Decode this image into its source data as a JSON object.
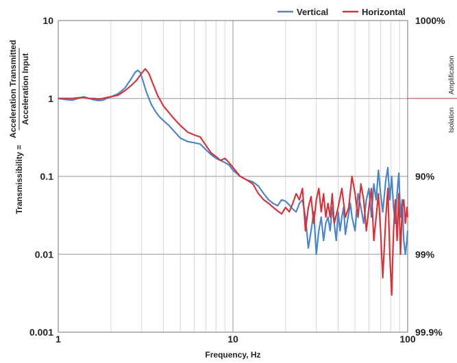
{
  "chart_data": {
    "type": "line",
    "xscale": "log",
    "yscale": "log",
    "xlim": [
      1,
      100
    ],
    "ylim": [
      0.001,
      10
    ],
    "xlabel": "Frequency, Hz",
    "ylabel_prefix": "Transmissibility =",
    "ylabel_numerator": "Acceleration Transmitted",
    "ylabel_denominator": "Acceleration Input",
    "x_ticks": [
      {
        "value": 1,
        "label": "1"
      },
      {
        "value": 10,
        "label": "10"
      },
      {
        "value": 100,
        "label": "100"
      }
    ],
    "y_ticks": [
      {
        "value": 10,
        "label": "10"
      },
      {
        "value": 1,
        "label": "1"
      },
      {
        "value": 0.1,
        "label": "0.1"
      },
      {
        "value": 0.01,
        "label": "0.01"
      },
      {
        "value": 0.001,
        "label": "0.001"
      }
    ],
    "right_axis_ticks": [
      {
        "value": 10,
        "label": "1000%"
      },
      {
        "value": 0.1,
        "label": "90%"
      },
      {
        "value": 0.01,
        "label": "99%"
      },
      {
        "value": 0.001,
        "label": "99.9%"
      }
    ],
    "right_axis_labels": {
      "upper": "Amplification",
      "lower": "Isolation",
      "divider_value": 1
    },
    "grid": true,
    "legend_position": "top-right",
    "series": [
      {
        "name": "Vertical",
        "color": "#4a86c5",
        "points": [
          [
            1.0,
            1.0
          ],
          [
            1.1,
            0.97
          ],
          [
            1.2,
            0.95
          ],
          [
            1.3,
            1.0
          ],
          [
            1.4,
            1.05
          ],
          [
            1.5,
            1.0
          ],
          [
            1.6,
            0.96
          ],
          [
            1.7,
            0.94
          ],
          [
            1.8,
            0.95
          ],
          [
            1.9,
            1.0
          ],
          [
            2.0,
            1.05
          ],
          [
            2.2,
            1.15
          ],
          [
            2.4,
            1.35
          ],
          [
            2.6,
            1.75
          ],
          [
            2.75,
            2.15
          ],
          [
            2.85,
            2.3
          ],
          [
            2.95,
            2.15
          ],
          [
            3.05,
            1.7
          ],
          [
            3.2,
            1.2
          ],
          [
            3.4,
            0.85
          ],
          [
            3.6,
            0.68
          ],
          [
            3.8,
            0.58
          ],
          [
            4.0,
            0.52
          ],
          [
            4.3,
            0.45
          ],
          [
            4.6,
            0.38
          ],
          [
            5.0,
            0.31
          ],
          [
            5.5,
            0.28
          ],
          [
            6.0,
            0.27
          ],
          [
            6.5,
            0.26
          ],
          [
            7.0,
            0.22
          ],
          [
            7.5,
            0.19
          ],
          [
            8.0,
            0.17
          ],
          [
            8.5,
            0.16
          ],
          [
            9.0,
            0.15
          ],
          [
            9.5,
            0.14
          ],
          [
            10.0,
            0.12
          ],
          [
            11.0,
            0.1
          ],
          [
            12.0,
            0.09
          ],
          [
            13.0,
            0.085
          ],
          [
            14.0,
            0.075
          ],
          [
            15.0,
            0.06
          ],
          [
            16.0,
            0.05
          ],
          [
            17.0,
            0.045
          ],
          [
            18.0,
            0.042
          ],
          [
            19.0,
            0.05
          ],
          [
            20.0,
            0.048
          ],
          [
            21.0,
            0.043
          ],
          [
            22.0,
            0.038
          ],
          [
            23.0,
            0.035
          ],
          [
            24.0,
            0.045
          ],
          [
            25.0,
            0.05
          ],
          [
            26.0,
            0.03
          ],
          [
            27.0,
            0.012
          ],
          [
            28.0,
            0.02
          ],
          [
            29.0,
            0.035
          ],
          [
            30.0,
            0.01
          ],
          [
            31.0,
            0.02
          ],
          [
            32.0,
            0.03
          ],
          [
            33.0,
            0.015
          ],
          [
            34.0,
            0.025
          ],
          [
            35.0,
            0.03
          ],
          [
            36.0,
            0.02
          ],
          [
            37.0,
            0.04
          ],
          [
            38.0,
            0.025
          ],
          [
            39.0,
            0.015
          ],
          [
            40.0,
            0.035
          ],
          [
            41.0,
            0.02
          ],
          [
            42.0,
            0.03
          ],
          [
            43.0,
            0.04
          ],
          [
            44.0,
            0.018
          ],
          [
            45.0,
            0.025
          ],
          [
            47.0,
            0.045
          ],
          [
            48.0,
            0.03
          ],
          [
            50.0,
            0.02
          ],
          [
            52.0,
            0.06
          ],
          [
            54.0,
            0.04
          ],
          [
            56.0,
            0.025
          ],
          [
            58.0,
            0.05
          ],
          [
            60.0,
            0.07
          ],
          [
            62.0,
            0.03
          ],
          [
            64.0,
            0.08
          ],
          [
            66.0,
            0.05
          ],
          [
            68.0,
            0.12
          ],
          [
            70.0,
            0.06
          ],
          [
            72.0,
            0.035
          ],
          [
            75.0,
            0.09
          ],
          [
            77.0,
            0.13
          ],
          [
            79.0,
            0.05
          ],
          [
            81.0,
            0.1
          ],
          [
            83.0,
            0.04
          ],
          [
            85.0,
            0.025
          ],
          [
            87.0,
            0.06
          ],
          [
            89.0,
            0.11
          ],
          [
            91.0,
            0.03
          ],
          [
            93.0,
            0.05
          ],
          [
            95.0,
            0.015
          ],
          [
            97.0,
            0.01
          ],
          [
            99.0,
            0.015
          ],
          [
            100.0,
            0.02
          ]
        ]
      },
      {
        "name": "Horizontal",
        "color": "#d2343c",
        "points": [
          [
            1.0,
            1.0
          ],
          [
            1.1,
            1.0
          ],
          [
            1.2,
            1.0
          ],
          [
            1.3,
            1.02
          ],
          [
            1.4,
            1.03
          ],
          [
            1.5,
            1.0
          ],
          [
            1.6,
            1.0
          ],
          [
            1.7,
            0.98
          ],
          [
            1.8,
            1.0
          ],
          [
            1.9,
            1.03
          ],
          [
            2.0,
            1.05
          ],
          [
            2.2,
            1.1
          ],
          [
            2.4,
            1.25
          ],
          [
            2.6,
            1.45
          ],
          [
            2.8,
            1.7
          ],
          [
            3.0,
            2.1
          ],
          [
            3.15,
            2.4
          ],
          [
            3.3,
            2.1
          ],
          [
            3.5,
            1.5
          ],
          [
            3.7,
            1.1
          ],
          [
            4.0,
            0.8
          ],
          [
            4.3,
            0.66
          ],
          [
            4.6,
            0.55
          ],
          [
            5.0,
            0.45
          ],
          [
            5.5,
            0.37
          ],
          [
            6.0,
            0.34
          ],
          [
            6.5,
            0.32
          ],
          [
            7.0,
            0.25
          ],
          [
            7.5,
            0.2
          ],
          [
            8.0,
            0.18
          ],
          [
            8.5,
            0.16
          ],
          [
            9.0,
            0.17
          ],
          [
            9.5,
            0.15
          ],
          [
            10.0,
            0.13
          ],
          [
            11.0,
            0.1
          ],
          [
            12.0,
            0.09
          ],
          [
            13.0,
            0.08
          ],
          [
            14.0,
            0.06
          ],
          [
            15.0,
            0.05
          ],
          [
            16.0,
            0.045
          ],
          [
            17.0,
            0.04
          ],
          [
            18.0,
            0.036
          ],
          [
            19.0,
            0.033
          ],
          [
            20.0,
            0.04
          ],
          [
            21.0,
            0.035
          ],
          [
            22.0,
            0.045
          ],
          [
            23.0,
            0.06
          ],
          [
            24.0,
            0.05
          ],
          [
            25.0,
            0.07
          ],
          [
            26.0,
            0.02
          ],
          [
            27.0,
            0.04
          ],
          [
            28.0,
            0.055
          ],
          [
            29.0,
            0.025
          ],
          [
            30.0,
            0.05
          ],
          [
            31.0,
            0.07
          ],
          [
            32.0,
            0.035
          ],
          [
            33.0,
            0.06
          ],
          [
            34.0,
            0.03
          ],
          [
            35.0,
            0.045
          ],
          [
            36.0,
            0.03
          ],
          [
            37.0,
            0.06
          ],
          [
            38.0,
            0.025
          ],
          [
            40.0,
            0.04
          ],
          [
            42.0,
            0.07
          ],
          [
            44.0,
            0.03
          ],
          [
            46.0,
            0.04
          ],
          [
            48.0,
            0.1
          ],
          [
            50.0,
            0.06
          ],
          [
            52.0,
            0.03
          ],
          [
            54.0,
            0.08
          ],
          [
            56.0,
            0.05
          ],
          [
            58.0,
            0.02
          ],
          [
            60.0,
            0.04
          ],
          [
            62.0,
            0.07
          ],
          [
            64.0,
            0.015
          ],
          [
            66.0,
            0.03
          ],
          [
            68.0,
            0.06
          ],
          [
            70.0,
            0.02
          ],
          [
            72.0,
            0.005
          ],
          [
            75.0,
            0.03
          ],
          [
            77.0,
            0.07
          ],
          [
            79.0,
            0.01
          ],
          [
            81.0,
            0.003
          ],
          [
            83.0,
            0.02
          ],
          [
            85.0,
            0.05
          ],
          [
            87.0,
            0.015
          ],
          [
            89.0,
            0.06
          ],
          [
            91.0,
            0.01
          ],
          [
            93.0,
            0.04
          ],
          [
            95.0,
            0.05
          ],
          [
            97.0,
            0.025
          ],
          [
            99.0,
            0.04
          ],
          [
            100.0,
            0.03
          ]
        ]
      }
    ]
  }
}
